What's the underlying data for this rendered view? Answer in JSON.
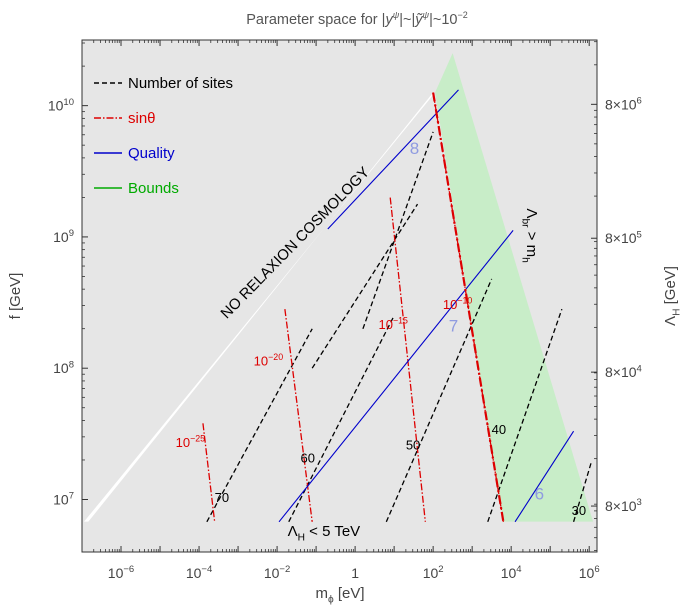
{
  "chart_data": {
    "type": "line",
    "title": "Parameter space for |y^ψ|~|ỹ^ψ|~10^−2",
    "xlabel": "m_ϕ [eV]",
    "ylabel": "f [GeV]",
    "y2label": "Λ_H [GeV]",
    "xscale": "log",
    "yscale": "log",
    "xlim_log10": [
      -7,
      6.2
    ],
    "ylim_log10": [
      6.6,
      10.5
    ],
    "grid": false,
    "legend_position": "top-left",
    "x_ticks": [
      {
        "exp": -6,
        "label": "10^−6"
      },
      {
        "exp": -4,
        "label": "10^−4"
      },
      {
        "exp": -2,
        "label": "10^−2"
      },
      {
        "exp": 0,
        "label": "1"
      },
      {
        "exp": 2,
        "label": "10^2"
      },
      {
        "exp": 4,
        "label": "10^4"
      },
      {
        "exp": 6,
        "label": "10^6"
      }
    ],
    "y_ticks": [
      {
        "exp": 7,
        "label": "10^7"
      },
      {
        "exp": 8,
        "label": "10^8"
      },
      {
        "exp": 9,
        "label": "10^9"
      },
      {
        "exp": 10,
        "label": "10^10"
      }
    ],
    "y2_ticks": [
      {
        "fexp": 6.95,
        "label": "8×10^3"
      },
      {
        "fexp": 7.97,
        "label": "8×10^4"
      },
      {
        "fexp": 8.99,
        "label": "8×10^5"
      },
      {
        "fexp": 10.01,
        "label": "8×10^6"
      }
    ],
    "legend": [
      {
        "label": "Number of sites",
        "color": "#000000",
        "dash": "5,3"
      },
      {
        "label": "sinθ",
        "color": "#dd0000",
        "dash": "7,2,1.5,2"
      },
      {
        "label": "Quality",
        "color": "#0000cc",
        "dash": ""
      },
      {
        "label": "Bounds",
        "color": "#00aa00",
        "dash": ""
      }
    ],
    "regions": [
      {
        "name": "excluded-background",
        "color": "#e6e6e6"
      },
      {
        "name": "allowed-region",
        "color": "#ffffff",
        "points": [
          [
            -6.95,
            6.83
          ],
          [
            -6.84,
            6.83
          ],
          [
            2.0,
            10.1
          ],
          [
            2.05,
            10.1
          ]
        ]
      },
      {
        "name": "bounds-band",
        "color": "#c8edc8",
        "points": [
          [
            2.05,
            10.1
          ],
          [
            2.5,
            10.4
          ],
          [
            6.1,
            6.83
          ],
          [
            3.8,
            6.83
          ]
        ]
      },
      {
        "name": "lambda-h-below-5tev",
        "color": "#e6e6e6",
        "points": [
          [
            -7,
            6.6
          ],
          [
            6.2,
            6.6
          ],
          [
            6.2,
            6.83
          ],
          [
            -7,
            6.83
          ]
        ]
      }
    ],
    "sites_lines": [
      {
        "label": "70",
        "x": [
          -3.8,
          -1.1
        ],
        "y": [
          6.83,
          8.3
        ],
        "label_at": [
          -3.6,
          6.98
        ]
      },
      {
        "label": "60",
        "x": [
          -1.7,
          1.0
        ],
        "y": [
          6.83,
          8.4
        ],
        "label_at": [
          -1.4,
          7.28
        ]
      },
      {
        "label": "50",
        "x": [
          0.8,
          3.5
        ],
        "y": [
          6.83,
          8.68
        ],
        "label_at": [
          1.3,
          7.38
        ]
      },
      {
        "label": "",
        "x": [
          -1.1,
          1.6
        ],
        "y": [
          8.0,
          9.25
        ]
      },
      {
        "label": "",
        "x": [
          0.2,
          2.0
        ],
        "y": [
          8.3,
          9.8
        ]
      },
      {
        "label": "40",
        "x": [
          3.4,
          5.3
        ],
        "y": [
          6.83,
          8.45
        ],
        "label_at": [
          3.5,
          7.5
        ]
      },
      {
        "label": "30",
        "x": [
          5.6,
          6.05
        ],
        "y": [
          6.83,
          7.28
        ],
        "label_at": [
          5.55,
          6.88
        ]
      }
    ],
    "sin_theta_lines": [
      {
        "label": "10^−25",
        "x": [
          -3.9,
          -3.6
        ],
        "y": [
          7.58,
          6.83
        ],
        "label_at": [
          -4.6,
          7.4
        ]
      },
      {
        "label": "10^−20",
        "x": [
          -1.8,
          -1.1
        ],
        "y": [
          8.45,
          6.83
        ],
        "label_at": [
          -2.6,
          8.02
        ]
      },
      {
        "label": "10^−15",
        "x": [
          0.9,
          1.8
        ],
        "y": [
          9.3,
          6.83
        ],
        "label_at": [
          0.6,
          8.3
        ]
      },
      {
        "label": "10^−10",
        "x": [
          2.0,
          3.8
        ],
        "y": [
          10.1,
          6.83
        ],
        "label_at": [
          2.25,
          8.45
        ]
      }
    ],
    "quality_lines": [
      {
        "label": "8",
        "x": [
          -0.7,
          2.65
        ],
        "y": [
          9.06,
          10.12
        ],
        "label_at": [
          1.4,
          9.63
        ]
      },
      {
        "label": "7",
        "x": [
          -1.95,
          4.05
        ],
        "y": [
          6.83,
          9.05
        ],
        "label_at": [
          2.4,
          8.28
        ]
      },
      {
        "label": "6",
        "x": [
          4.1,
          5.6
        ],
        "y": [
          6.83,
          7.52
        ],
        "label_at": [
          4.6,
          7.0
        ]
      }
    ],
    "annotations": [
      {
        "text": "NO RELAXION COSMOLOGY",
        "at": [
          -1.45,
          8.93
        ],
        "angle": -45.6,
        "color": "#000000"
      },
      {
        "text": "Λ_br > m_h",
        "at": [
          4.4,
          9.01
        ],
        "angle": 90,
        "color": "#000000"
      },
      {
        "text": "Λ_H < 5 TeV",
        "at": [
          -0.8,
          6.72
        ],
        "angle": 0,
        "color": "#000000"
      }
    ]
  }
}
